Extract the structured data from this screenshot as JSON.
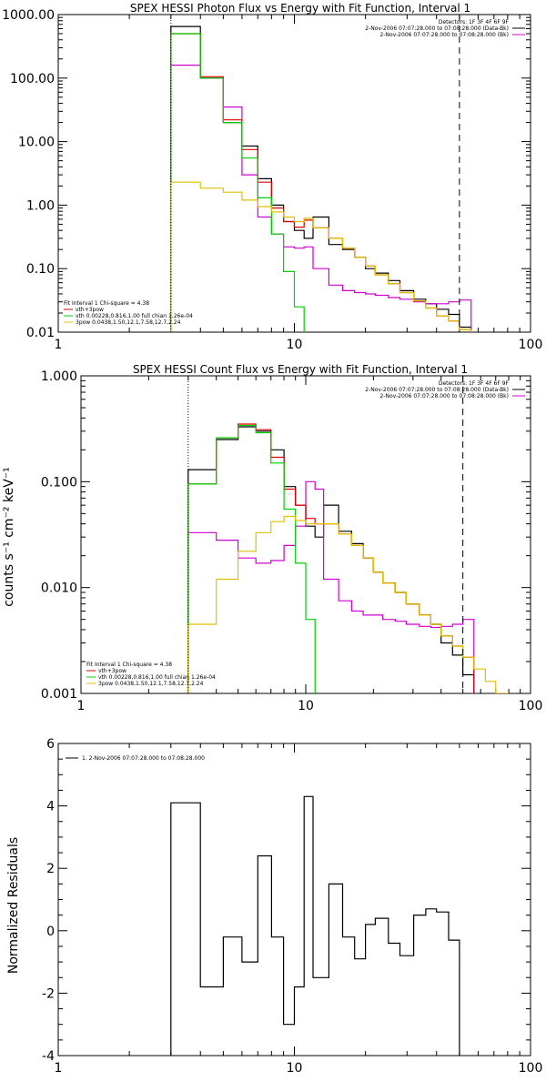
{
  "chart_data": [
    {
      "type": "line",
      "title": "SPEX HESSI Photon Flux vs Energy with Fit Function, Interval 1",
      "ylabel": "",
      "xscale": "log",
      "yscale": "log",
      "xlim": [
        1,
        100
      ],
      "ylim": [
        0.01,
        1000
      ],
      "x_tick_labels": [
        "1",
        "10",
        "100"
      ],
      "y_tick_labels": [
        "0.01",
        "0.10",
        "1.00",
        "10.00",
        "100.00",
        "1000.00"
      ],
      "vlines": [
        {
          "x": 3,
          "style": "dotted"
        },
        {
          "x": 50,
          "style": "dashed"
        }
      ],
      "legend_top": [
        "Detectors: 1F 3F 4F 6F 9F",
        "2-Nov-2006 07:07:28.000 to 07:08:28.000 (Data-Bk)",
        "2-Nov-2006 07:07:28.000 to 07:08:28.000 (Bk)"
      ],
      "legend_bottom_title": "Fit Interval 1   Chi-square = 4.38",
      "legend_bottom": [
        "vth+3pow",
        "vth 0.00228,0.816,1.00  full chian 1.26e-04",
        "3pow 0.0438,1.50,12.1,7.58,12.7,2.24"
      ],
      "colors": {
        "data": "#000000",
        "bk": "#d000d0",
        "total": "#e00000",
        "vth": "#00d000",
        "pow": "#e0c000"
      },
      "edges": [
        3,
        4,
        5,
        6,
        7,
        8,
        9,
        10,
        11,
        12,
        14,
        16,
        18,
        20,
        22,
        25,
        28,
        32,
        36,
        40,
        45,
        50,
        56,
        63
      ],
      "series": [
        {
          "name": "2-Nov-2006 07:07:28.000 to 07:08:28.000 (Data-Bk)",
          "color": "#000000",
          "values": [
            650,
            100,
            20,
            8.5,
            2.6,
            1.0,
            0.55,
            0.4,
            0.3,
            0.65,
            0.24,
            0.2,
            0.15,
            0.1,
            0.085,
            0.065,
            0.045,
            0.033,
            0.028,
            0.023,
            0.019,
            0.012,
            null
          ]
        },
        {
          "name": "2-Nov-2006 07:07:28.000 to 07:08:28.000 (Bk)",
          "color": "#d000d0",
          "values": [
            160,
            100,
            35,
            3.0,
            0.65,
            0.35,
            0.22,
            0.21,
            0.22,
            0.1,
            0.055,
            0.045,
            0.042,
            0.04,
            0.038,
            0.035,
            0.033,
            0.03,
            0.028,
            0.028,
            0.03,
            0.032,
            null
          ]
        },
        {
          "name": "vth+3pow",
          "color": "#e00000",
          "values": [
            500,
            105,
            22,
            7.5,
            2.3,
            0.9,
            0.55,
            0.45,
            0.58,
            0.44,
            0.3,
            0.21,
            0.15,
            0.11,
            0.08,
            0.058,
            0.042,
            0.031,
            0.024,
            0.018,
            0.015,
            0.011,
            null
          ]
        },
        {
          "name": "vth 0.00228,0.816,1.00  full chian 1.26e-04",
          "color": "#00d000",
          "values": [
            500,
            100,
            20,
            5.5,
            1.3,
            0.35,
            0.09,
            0.025,
            0.007,
            null,
            null,
            null,
            null,
            null,
            null,
            null,
            null,
            null,
            null,
            null,
            null,
            null,
            null
          ]
        },
        {
          "name": "3pow 0.0438,1.50,12.1,7.58,12.7,2.24",
          "color": "#e0c000",
          "values": [
            2.3,
            1.85,
            1.6,
            1.2,
            0.95,
            0.78,
            0.65,
            0.55,
            0.62,
            0.44,
            0.3,
            0.21,
            0.15,
            0.11,
            0.08,
            0.058,
            0.042,
            0.031,
            0.024,
            0.018,
            0.015,
            0.011,
            0.0095
          ]
        }
      ]
    },
    {
      "type": "line",
      "title": "SPEX HESSI Count Flux vs Energy with Fit Function, Interval 1",
      "ylabel": "counts s⁻¹ cm⁻² keV⁻¹",
      "xscale": "log",
      "yscale": "log",
      "xlim": [
        1,
        100
      ],
      "ylim": [
        0.001,
        1
      ],
      "x_tick_labels": [
        "1",
        "10",
        "100"
      ],
      "y_tick_labels": [
        "0.001",
        "0.010",
        "0.100",
        "1.000"
      ],
      "vlines": [
        {
          "x": 3,
          "style": "dotted"
        },
        {
          "x": 50,
          "style": "dashed"
        }
      ],
      "legend_top": [
        "Detectors: 1F 3F 4F 6F 9F",
        "2-Nov-2006 07:07:28.000 to 07:08:28.000 (Data-Bk)",
        "2-Nov-2006 07:07:28.000 to 07:08:28.000 (Bk)"
      ],
      "legend_bottom_title": "Fit Interval 1   Chi-square = 4.38",
      "legend_bottom": [
        "vth+3pow",
        "vth 0.00228,0.816,1.00  full chian 1.26e-04",
        "3pow 0.0438,1.50,12.1,7.58,12.7,2.24"
      ],
      "edges": [
        3,
        4,
        5,
        6,
        7,
        8,
        9,
        10,
        11,
        12,
        14,
        16,
        18,
        20,
        22,
        25,
        28,
        32,
        36,
        40,
        45,
        50,
        56,
        63,
        70,
        80
      ],
      "series": [
        {
          "name": "2-Nov-2006 07:07:28.000 to 07:08:28.000 (Data-Bk)",
          "color": "#000000",
          "values": [
            0.13,
            0.25,
            0.33,
            0.3,
            0.2,
            0.09,
            0.06,
            0.038,
            0.03,
            0.06,
            0.034,
            0.026,
            0.019,
            0.014,
            0.011,
            0.009,
            0.007,
            0.0055,
            0.0045,
            0.003,
            0.0023,
            0.0015,
            null,
            null,
            null
          ]
        },
        {
          "name": "2-Nov-2006 07:07:28.000 to 07:08:28.000 (Bk)",
          "color": "#d000d0",
          "values": [
            0.033,
            0.028,
            0.019,
            0.017,
            0.018,
            0.025,
            0.038,
            0.1,
            0.085,
            0.012,
            0.0075,
            0.006,
            0.0055,
            0.0055,
            0.005,
            0.0048,
            0.0045,
            0.0043,
            0.0042,
            0.0043,
            0.0045,
            0.005,
            null,
            null,
            null
          ]
        },
        {
          "name": "vth+3pow",
          "color": "#e00000",
          "values": [
            0.095,
            0.26,
            0.35,
            0.31,
            0.17,
            0.085,
            0.06,
            0.045,
            0.04,
            0.04,
            0.032,
            0.025,
            0.019,
            0.014,
            0.011,
            0.009,
            0.007,
            0.0055,
            0.0045,
            0.0035,
            0.0028,
            0.0022,
            null,
            null,
            null
          ]
        },
        {
          "name": "vth 0.00228,0.816,1.00  full chian 1.26e-04",
          "color": "#00d000",
          "values": [
            0.095,
            0.26,
            0.34,
            0.29,
            0.15,
            0.055,
            0.017,
            0.005,
            0.0007,
            null,
            null,
            null,
            null,
            null,
            null,
            null,
            null,
            null,
            null,
            null,
            null,
            null,
            null,
            null,
            null
          ]
        },
        {
          "name": "3pow 0.0438,1.50,12.1,7.58,12.7,2.24",
          "color": "#e0c000",
          "values": [
            0.0045,
            0.012,
            0.022,
            0.033,
            0.042,
            0.047,
            0.043,
            0.04,
            0.04,
            0.04,
            0.032,
            0.025,
            0.019,
            0.014,
            0.011,
            0.009,
            0.007,
            0.0055,
            0.0045,
            0.0035,
            0.0028,
            0.0022,
            0.0017,
            0.0013,
            0.001
          ]
        }
      ]
    },
    {
      "type": "line",
      "title": "",
      "ylabel": "Normalized Residuals",
      "xscale": "log",
      "xlim": [
        1,
        100
      ],
      "ylim": [
        -4,
        6
      ],
      "x_tick_labels": [
        "1",
        "10",
        "100"
      ],
      "y_tick_labels": [
        "-4",
        "-2",
        "0",
        "2",
        "4",
        "6"
      ],
      "legend": [
        "1.  2-Nov-2006 07:07:28.000 to 07:08:28.000"
      ],
      "edges": [
        3,
        4,
        5,
        6,
        7,
        8,
        9,
        10,
        11,
        12,
        14,
        16,
        18,
        20,
        22,
        25,
        28,
        32,
        36,
        40,
        45,
        50
      ],
      "series": [
        {
          "name": "1.  2-Nov-2006 07:07:28.000 to 07:08:28.000",
          "color": "#000000",
          "values": [
            4.1,
            -1.8,
            -0.2,
            -1.0,
            2.4,
            -0.2,
            -3.0,
            -1.8,
            4.3,
            -1.5,
            1.5,
            -0.2,
            -0.9,
            0.2,
            0.4,
            -0.4,
            -0.8,
            0.5,
            0.7,
            0.6,
            -0.3
          ]
        }
      ]
    }
  ]
}
